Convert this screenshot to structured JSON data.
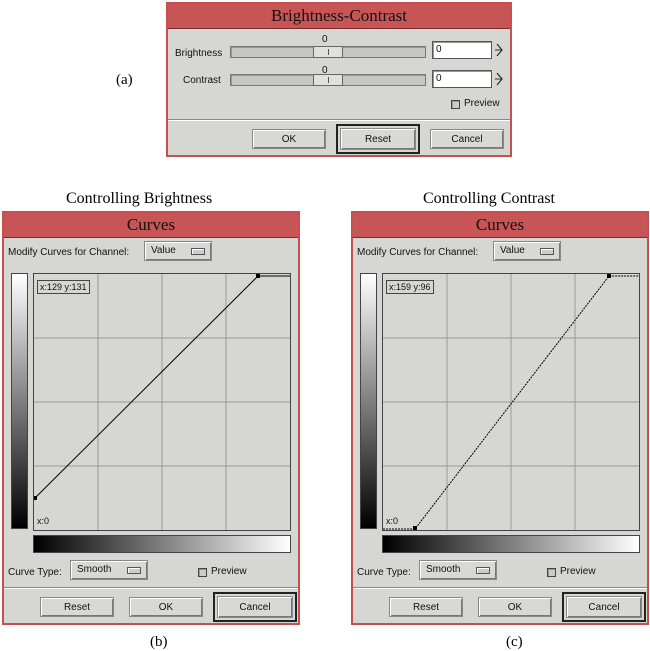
{
  "labels": {
    "a": "(a)",
    "b": "(b)",
    "c": "(c)"
  },
  "captions": {
    "left": "Controlling Brightness",
    "right": "Controlling Contrast"
  },
  "bc_dialog": {
    "title": "Brightness-Contrast",
    "brightness": {
      "label": "Brightness",
      "value_display": "0",
      "field_value": "0"
    },
    "contrast": {
      "label": "Contrast",
      "value_display": "0",
      "field_value": "0"
    },
    "preview_label": "Preview",
    "buttons": {
      "ok": "OK",
      "reset": "Reset",
      "cancel": "Cancel"
    }
  },
  "curves_left": {
    "title": "Curves",
    "channel_label": "Modify Curves for Channel:",
    "channel_value": "Value",
    "coord_readout": "x:129 y:131",
    "x_readout": "x:0",
    "curve_type_label": "Curve Type:",
    "curve_type_value": "Smooth",
    "preview_label": "Preview",
    "buttons": {
      "reset": "Reset",
      "ok": "OK",
      "cancel": "Cancel"
    }
  },
  "curves_right": {
    "title": "Curves",
    "channel_label": "Modify Curves for Channel:",
    "channel_value": "Value",
    "coord_readout": "x:159 y:96",
    "x_readout": "x:0",
    "curve_type_label": "Curve Type:",
    "curve_type_value": "Smooth",
    "preview_label": "Preview",
    "buttons": {
      "reset": "Reset",
      "ok": "OK",
      "cancel": "Cancel"
    }
  },
  "colors": {
    "title_bar": "#c85555",
    "dialog_bg": "#d6d6d2",
    "border": "#c84f4f"
  }
}
